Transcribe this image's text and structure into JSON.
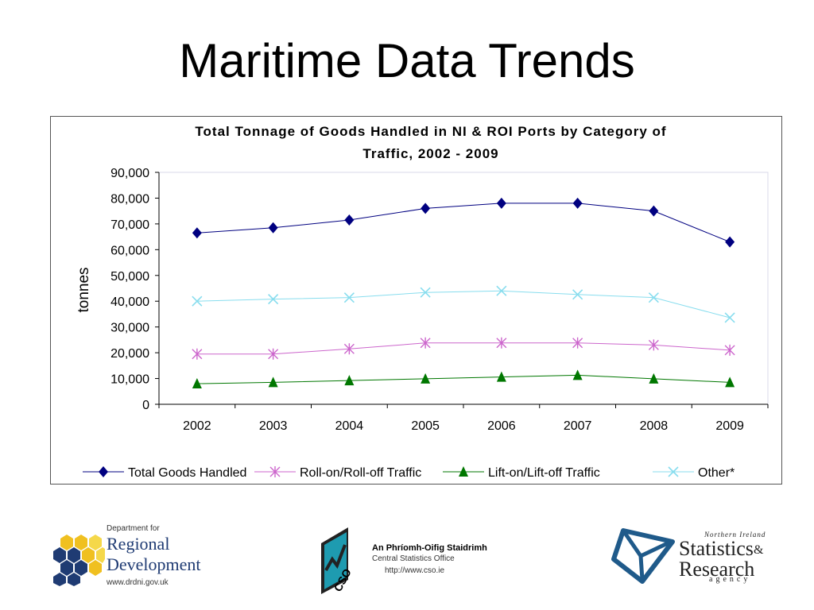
{
  "slide": {
    "title": "Maritime Data Trends"
  },
  "chart_data": {
    "type": "line",
    "title_line1": "Total Tonnage of Goods Handled in NI & ROI Ports by Category of",
    "title_line2": "Traffic,  2002 - 2009",
    "ylabel": "tonnes",
    "xlabel": "",
    "ylim": [
      0,
      90000
    ],
    "yticks": [
      "0",
      "10,000",
      "20,000",
      "30,000",
      "40,000",
      "50,000",
      "60,000",
      "70,000",
      "80,000",
      "90,000"
    ],
    "categories": [
      "2002",
      "2003",
      "2004",
      "2005",
      "2006",
      "2007",
      "2008",
      "2009"
    ],
    "legend_position": "bottom",
    "grid": false,
    "series": [
      {
        "name": "Total Goods Handled",
        "color": "#000080",
        "marker": "diamond",
        "values": [
          66500,
          68500,
          71500,
          76000,
          78000,
          78000,
          75000,
          63000
        ]
      },
      {
        "name": "Roll-on/Roll-off Traffic",
        "color": "#cc66cc",
        "marker": "star",
        "values": [
          19500,
          19500,
          21500,
          23800,
          23800,
          23800,
          23000,
          21000
        ]
      },
      {
        "name": "Lift-on/Lift-off Traffic",
        "color": "#007700",
        "marker": "triangle",
        "values": [
          8000,
          8500,
          9200,
          9900,
          10600,
          11300,
          9900,
          8500
        ]
      },
      {
        "name": "Other*",
        "color": "#88ddee",
        "marker": "x",
        "values": [
          40000,
          40800,
          41400,
          43400,
          44000,
          42600,
          41400,
          33600
        ]
      }
    ]
  },
  "logos": {
    "drd": {
      "line1": "Department for",
      "line2": "Regional",
      "line3": "Development",
      "url": "www.drdni.gov.uk"
    },
    "cso": {
      "mark": "CSO",
      "irish": "An Phríomh-Oifig Staidrimh",
      "english": "Central Statistics Office",
      "url": "http://www.cso.ie"
    },
    "nisra": {
      "top": "Northern Ireland",
      "word1": "Statistics",
      "amp": "&",
      "word2": "Research",
      "word3": "agency"
    }
  }
}
